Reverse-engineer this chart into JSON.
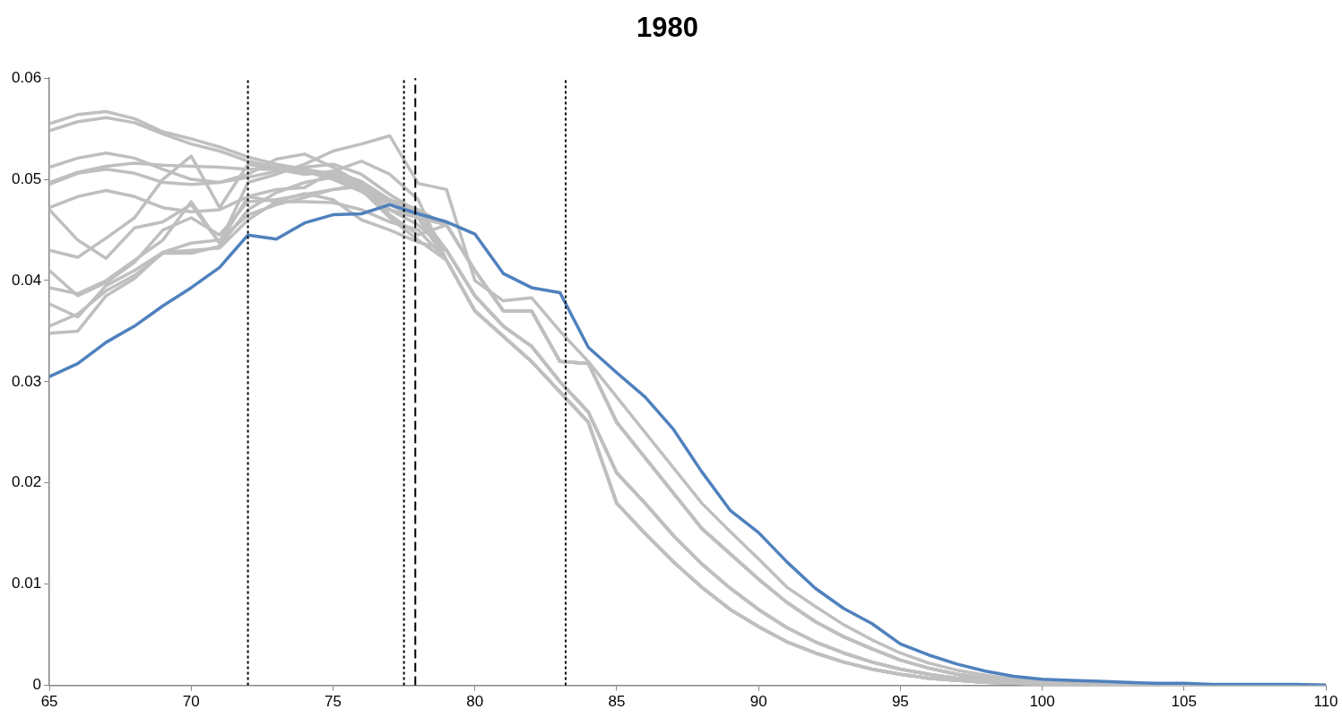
{
  "chart_data": {
    "type": "line",
    "title": "1980",
    "x": [
      65,
      66,
      67,
      68,
      69,
      70,
      71,
      72,
      73,
      74,
      75,
      76,
      77,
      78,
      79,
      80,
      81,
      82,
      83,
      84,
      85,
      86,
      87,
      88,
      89,
      90,
      91,
      92,
      93,
      94,
      95,
      96,
      97,
      98,
      99,
      100,
      101,
      102,
      103,
      104,
      105,
      106,
      107,
      108,
      109,
      110
    ],
    "xlim": [
      65,
      110
    ],
    "xticks": [
      65,
      70,
      75,
      80,
      85,
      90,
      95,
      100,
      105,
      110
    ],
    "ylim": [
      0,
      0.06
    ],
    "yticks": [
      0,
      0.01,
      0.02,
      0.03,
      0.04,
      0.05,
      0.06
    ],
    "grid": false,
    "legend": false,
    "marker": "none",
    "line_style": "solid",
    "series": [
      {
        "color": "#bfbfbf",
        "values": [
          0.0555,
          0.0564,
          0.0567,
          0.056,
          0.0547,
          0.054,
          0.0532,
          0.0522,
          0.0515,
          0.051,
          0.0503,
          0.0493,
          0.0475,
          0.0462,
          0.0455,
          0.041,
          0.037,
          0.037,
          0.032,
          0.0318,
          0.026,
          0.0225,
          0.019,
          0.0155,
          0.013,
          0.0105,
          0.0082,
          0.0063,
          0.0048,
          0.0036,
          0.0025,
          0.0017,
          0.0011,
          0.0007,
          0.0004,
          0.0003,
          0.0002,
          0.0001,
          0.0001,
          0,
          0,
          0,
          0,
          0,
          0,
          0
        ]
      },
      {
        "color": "#bfbfbf",
        "values": [
          0.0548,
          0.0557,
          0.0561,
          0.0556,
          0.0545,
          0.0535,
          0.0528,
          0.0518,
          0.0512,
          0.0508,
          0.05,
          0.0488,
          0.047,
          0.0455,
          0.043,
          0.0385,
          0.0355,
          0.0335,
          0.03,
          0.027,
          0.021,
          0.018,
          0.0148,
          0.012,
          0.0096,
          0.0075,
          0.0057,
          0.0043,
          0.0032,
          0.0023,
          0.0016,
          0.0011,
          0.0007,
          0.0005,
          0.0003,
          0.0002,
          0.0001,
          0,
          0,
          0,
          0,
          0,
          0,
          0,
          0,
          0
        ]
      },
      {
        "color": "#bfbfbf",
        "values": [
          0.0512,
          0.0521,
          0.0526,
          0.0521,
          0.051,
          0.05,
          0.0497,
          0.0502,
          0.0508,
          0.051,
          0.0505,
          0.0495,
          0.0478,
          0.0462,
          0.042,
          0.037,
          0.0345,
          0.032,
          0.029,
          0.026,
          0.018,
          0.015,
          0.0122,
          0.0097,
          0.0075,
          0.0058,
          0.0043,
          0.0032,
          0.0023,
          0.0016,
          0.0011,
          0.0007,
          0.0005,
          0.0003,
          0.0002,
          0.0001,
          0.0001,
          0,
          0,
          0,
          0,
          0,
          0,
          0,
          0,
          0
        ]
      },
      {
        "color": "#bfbfbf",
        "values": [
          0.0497,
          0.0507,
          0.0513,
          0.0516,
          0.0514,
          0.0513,
          0.0512,
          0.051,
          0.051,
          0.0512,
          0.0515,
          0.0505,
          0.0485,
          0.0468,
          0.043,
          0.0385,
          0.0355,
          0.0335,
          0.03,
          0.027,
          0.021,
          0.018,
          0.0148,
          0.012,
          0.0096,
          0.0075,
          0.0057,
          0.0043,
          0.0032,
          0.0023,
          0.0016,
          0.0011,
          0.0007,
          0.0005,
          0.0003,
          0.0002,
          0.0001,
          0,
          0,
          0,
          0,
          0,
          0,
          0,
          0,
          0
        ]
      },
      {
        "color": "#bfbfbf",
        "values": [
          0.0495,
          0.0506,
          0.051,
          0.0506,
          0.0497,
          0.0495,
          0.0497,
          0.0505,
          0.052,
          0.0525,
          0.0512,
          0.0495,
          0.048,
          0.0465,
          0.0455,
          0.041,
          0.037,
          0.037,
          0.032,
          0.0318,
          0.026,
          0.0225,
          0.019,
          0.0155,
          0.013,
          0.0105,
          0.0082,
          0.0063,
          0.0048,
          0.0036,
          0.0025,
          0.0017,
          0.0011,
          0.0007,
          0.0004,
          0.0003,
          0.0002,
          0.0001,
          0.0001,
          0,
          0,
          0,
          0,
          0,
          0,
          0
        ]
      },
      {
        "color": "#bfbfbf",
        "values": [
          0.0472,
          0.0483,
          0.0489,
          0.0483,
          0.0472,
          0.0468,
          0.047,
          0.0483,
          0.049,
          0.0492,
          0.0508,
          0.0518,
          0.0505,
          0.048,
          0.042,
          0.037,
          0.0345,
          0.032,
          0.029,
          0.026,
          0.018,
          0.015,
          0.0122,
          0.0097,
          0.0075,
          0.0058,
          0.0043,
          0.0032,
          0.0023,
          0.0016,
          0.0011,
          0.0007,
          0.0005,
          0.0003,
          0.0002,
          0.0001,
          0.0001,
          0,
          0,
          0,
          0,
          0,
          0,
          0,
          0,
          0
        ]
      },
      {
        "color": "#bfbfbf",
        "values": [
          0.047,
          0.044,
          0.0422,
          0.0452,
          0.0458,
          0.0475,
          0.0437,
          0.0497,
          0.0505,
          0.0515,
          0.0528,
          0.0535,
          0.0543,
          0.0496,
          0.049,
          0.04,
          0.038,
          0.0383,
          0.035,
          0.032,
          0.0285,
          0.025,
          0.0215,
          0.018,
          0.0152,
          0.0125,
          0.0097,
          0.0078,
          0.006,
          0.0045,
          0.0032,
          0.0022,
          0.0015,
          0.001,
          0.0006,
          0.0004,
          0.0003,
          0.0002,
          0.0001,
          0.0001,
          0.0001,
          0,
          0,
          0,
          0,
          0
        ]
      },
      {
        "color": "#bfbfbf",
        "values": [
          0.043,
          0.0423,
          0.0442,
          0.0462,
          0.05,
          0.0523,
          0.0472,
          0.0515,
          0.051,
          0.0505,
          0.0508,
          0.0498,
          0.048,
          0.047,
          0.0455,
          0.041,
          0.037,
          0.037,
          0.032,
          0.0318,
          0.026,
          0.0225,
          0.019,
          0.0155,
          0.013,
          0.0105,
          0.0082,
          0.0063,
          0.0048,
          0.0036,
          0.0025,
          0.0017,
          0.0011,
          0.0007,
          0.0004,
          0.0003,
          0.0002,
          0.0001,
          0.0001,
          0,
          0,
          0,
          0,
          0,
          0,
          0
        ]
      },
      {
        "color": "#bfbfbf",
        "values": [
          0.041,
          0.0385,
          0.0398,
          0.0418,
          0.045,
          0.0462,
          0.0445,
          0.0478,
          0.048,
          0.0485,
          0.049,
          0.0493,
          0.047,
          0.0462,
          0.043,
          0.0385,
          0.0355,
          0.0335,
          0.03,
          0.027,
          0.021,
          0.018,
          0.0148,
          0.012,
          0.0096,
          0.0075,
          0.0057,
          0.0043,
          0.0032,
          0.0023,
          0.0016,
          0.0011,
          0.0007,
          0.0005,
          0.0003,
          0.0002,
          0.0001,
          0,
          0,
          0,
          0,
          0,
          0,
          0,
          0,
          0
        ]
      },
      {
        "color": "#bfbfbf",
        "values": [
          0.0393,
          0.0387,
          0.04,
          0.042,
          0.044,
          0.0478,
          0.0437,
          0.0483,
          0.0478,
          0.0478,
          0.0477,
          0.047,
          0.0458,
          0.045,
          0.042,
          0.037,
          0.0345,
          0.032,
          0.029,
          0.026,
          0.018,
          0.015,
          0.0122,
          0.0097,
          0.0075,
          0.0058,
          0.0043,
          0.0032,
          0.0023,
          0.0016,
          0.0011,
          0.0007,
          0.0005,
          0.0003,
          0.0002,
          0.0001,
          0.0001,
          0,
          0,
          0,
          0,
          0,
          0,
          0,
          0,
          0
        ]
      },
      {
        "color": "#bfbfbf",
        "values": [
          0.0377,
          0.0364,
          0.0395,
          0.041,
          0.0428,
          0.0437,
          0.044,
          0.0465,
          0.0475,
          0.0482,
          0.049,
          0.0495,
          0.0465,
          0.0445,
          0.0455,
          0.041,
          0.037,
          0.037,
          0.032,
          0.0318,
          0.026,
          0.0225,
          0.019,
          0.0155,
          0.013,
          0.0105,
          0.0082,
          0.0063,
          0.0048,
          0.0036,
          0.0025,
          0.0017,
          0.0011,
          0.0007,
          0.0004,
          0.0003,
          0.0002,
          0.0001,
          0.0001,
          0,
          0,
          0,
          0,
          0,
          0,
          0
        ]
      },
      {
        "color": "#bfbfbf",
        "values": [
          0.0355,
          0.0367,
          0.039,
          0.0405,
          0.0427,
          0.0427,
          0.0434,
          0.047,
          0.0487,
          0.0497,
          0.0502,
          0.049,
          0.0462,
          0.044,
          0.042,
          0.037,
          0.0345,
          0.032,
          0.029,
          0.026,
          0.018,
          0.015,
          0.0122,
          0.0097,
          0.0075,
          0.0058,
          0.0043,
          0.0032,
          0.0023,
          0.0016,
          0.0011,
          0.0007,
          0.0005,
          0.0003,
          0.0002,
          0.0001,
          0.0001,
          0,
          0,
          0,
          0,
          0,
          0,
          0,
          0,
          0
        ]
      },
      {
        "color": "#bfbfbf",
        "values": [
          0.0348,
          0.035,
          0.0385,
          0.0402,
          0.0428,
          0.043,
          0.0432,
          0.046,
          0.0478,
          0.0486,
          0.048,
          0.046,
          0.045,
          0.0438,
          0.043,
          0.0385,
          0.0355,
          0.0335,
          0.03,
          0.027,
          0.021,
          0.018,
          0.0148,
          0.012,
          0.0096,
          0.0075,
          0.0057,
          0.0043,
          0.0032,
          0.0023,
          0.0016,
          0.0011,
          0.0007,
          0.0005,
          0.0003,
          0.0002,
          0.0001,
          0,
          0,
          0,
          0,
          0,
          0,
          0,
          0,
          0
        ]
      },
      {
        "color": "#4f81bd",
        "values": [
          0.0305,
          0.0318,
          0.0339,
          0.0355,
          0.0375,
          0.0393,
          0.0413,
          0.0445,
          0.0441,
          0.0457,
          0.0465,
          0.0466,
          0.0475,
          0.0466,
          0.0458,
          0.0446,
          0.0407,
          0.0393,
          0.0388,
          0.0334,
          0.0309,
          0.0285,
          0.0253,
          0.0211,
          0.0173,
          0.0151,
          0.0122,
          0.0096,
          0.0076,
          0.0061,
          0.0041,
          0.003,
          0.0021,
          0.0014,
          0.0009,
          0.0006,
          0.0005,
          0.0004,
          0.0003,
          0.0002,
          0.0002,
          0.0001,
          0.0001,
          0.0001,
          0.0001,
          0
        ]
      }
    ],
    "ref_lines": [
      {
        "axis": "x",
        "value": 72,
        "color": "#000000",
        "line_style": "dotted"
      },
      {
        "axis": "x",
        "value": 77.5,
        "color": "#000000",
        "line_style": "dotted"
      },
      {
        "axis": "x",
        "value": 77.9,
        "color": "#000000",
        "line_style": "dashed"
      },
      {
        "axis": "x",
        "value": 83.2,
        "color": "#000000",
        "line_style": "dotted"
      }
    ]
  }
}
